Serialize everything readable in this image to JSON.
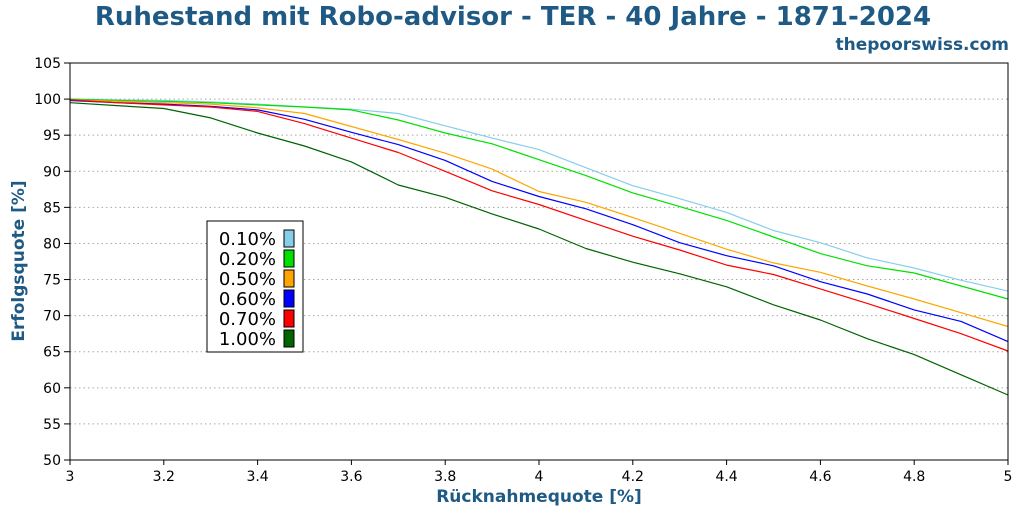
{
  "chart_data": {
    "type": "line",
    "title": "Ruhestand mit Robo-advisor - TER - 40 Jahre - 1871-2024",
    "source": "thepoorswiss.com",
    "xlabel": "Rücknahmequote [%]",
    "ylabel": "Erfolgsquote [%]",
    "xlim": [
      3,
      5
    ],
    "ylim": [
      50,
      105
    ],
    "x_ticks": [
      "3",
      "3.2",
      "3.4",
      "3.6",
      "3.8",
      "4",
      "4.2",
      "4.4",
      "4.6",
      "4.8",
      "5"
    ],
    "y_ticks": [
      "50",
      "55",
      "60",
      "65",
      "70",
      "75",
      "80",
      "85",
      "90",
      "95",
      "100",
      "105"
    ],
    "grid": true,
    "legend_position": "center-left",
    "x": [
      3.0,
      3.1,
      3.2,
      3.3,
      3.4,
      3.5,
      3.6,
      3.7,
      3.8,
      3.9,
      4.0,
      4.1,
      4.2,
      4.3,
      4.4,
      4.5,
      4.6,
      4.7,
      4.8,
      4.9,
      5.0
    ],
    "series": [
      {
        "name": "0.10%",
        "color": "#87ceeb",
        "values": [
          100,
          99.9,
          99.8,
          99.6,
          99.3,
          98.9,
          98.6,
          98.0,
          96.3,
          94.6,
          93.0,
          90.5,
          88.0,
          86.2,
          84.3,
          81.8,
          80.1,
          78.0,
          76.6,
          74.9,
          73.4
        ]
      },
      {
        "name": "0.20%",
        "color": "#00e000",
        "values": [
          100,
          99.8,
          99.7,
          99.5,
          99.2,
          98.9,
          98.5,
          97.1,
          95.3,
          93.8,
          91.6,
          89.4,
          87.0,
          85.1,
          83.2,
          80.9,
          78.6,
          76.9,
          75.9,
          74.1,
          72.3
        ]
      },
      {
        "name": "0.50%",
        "color": "#ffa500",
        "values": [
          99.9,
          99.7,
          99.5,
          99.3,
          98.8,
          98.0,
          96.2,
          94.4,
          92.5,
          90.3,
          87.2,
          85.7,
          83.6,
          81.4,
          79.2,
          77.3,
          76.0,
          74.1,
          72.3,
          70.4,
          68.5
        ]
      },
      {
        "name": "0.60%",
        "color": "#0000ff",
        "values": [
          99.8,
          99.5,
          99.3,
          99.0,
          98.5,
          97.2,
          95.4,
          93.7,
          91.5,
          88.6,
          86.5,
          84.8,
          82.6,
          80.1,
          78.3,
          76.9,
          74.7,
          73.0,
          70.8,
          69.2,
          66.4
        ]
      },
      {
        "name": "0.70%",
        "color": "#ff0000",
        "values": [
          99.9,
          99.5,
          99.2,
          98.9,
          98.3,
          96.6,
          94.6,
          92.6,
          90.0,
          87.3,
          85.4,
          83.2,
          81.0,
          79.1,
          77.0,
          75.7,
          73.7,
          71.7,
          69.6,
          67.5,
          65.1
        ]
      },
      {
        "name": "1.00%",
        "color": "#006400",
        "values": [
          99.5,
          99.1,
          98.7,
          97.4,
          95.3,
          93.5,
          91.3,
          88.1,
          86.4,
          84.1,
          82.0,
          79.3,
          77.4,
          75.8,
          74.0,
          71.5,
          69.4,
          66.8,
          64.6,
          61.8,
          59.0
        ]
      }
    ]
  }
}
